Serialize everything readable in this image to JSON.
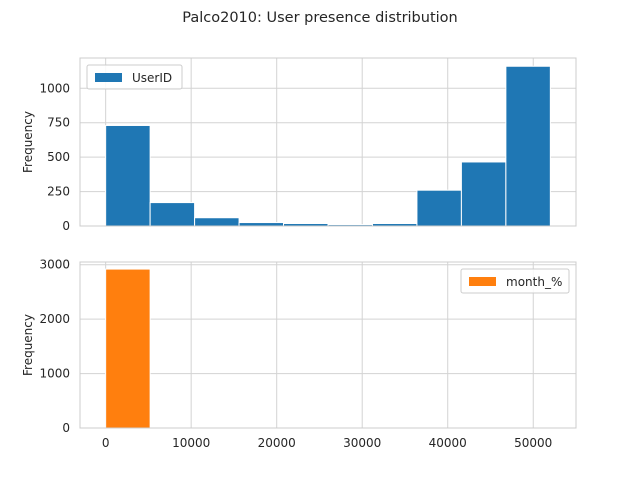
{
  "figure": {
    "title": "Palco2010: User presence distribution"
  },
  "chart_data": [
    {
      "type": "bar",
      "subtype": "histogram",
      "legend_label": "UserID",
      "legend_position": "upper left",
      "ylabel": "Frequency",
      "xlabel": "",
      "color": "#1f77b4",
      "xlim": [
        -3000,
        55000
      ],
      "ylim": [
        0,
        1220
      ],
      "yticks": [
        0,
        250,
        500,
        750,
        1000
      ],
      "xticks_visible": false,
      "grid": true,
      "bins": [
        {
          "x0": 0,
          "x1": 5200,
          "count": 730
        },
        {
          "x0": 5200,
          "x1": 10400,
          "count": 170
        },
        {
          "x0": 10400,
          "x1": 15600,
          "count": 60
        },
        {
          "x0": 15600,
          "x1": 20800,
          "count": 25
        },
        {
          "x0": 20800,
          "x1": 26000,
          "count": 18
        },
        {
          "x0": 26000,
          "x1": 31200,
          "count": 10
        },
        {
          "x0": 31200,
          "x1": 36400,
          "count": 18
        },
        {
          "x0": 36400,
          "x1": 41600,
          "count": 260
        },
        {
          "x0": 41600,
          "x1": 46800,
          "count": 465
        },
        {
          "x0": 46800,
          "x1": 52000,
          "count": 1160
        }
      ]
    },
    {
      "type": "bar",
      "subtype": "histogram",
      "legend_label": "month_%",
      "legend_position": "upper right",
      "ylabel": "Frequency",
      "xlabel": "",
      "color": "#ff7f0e",
      "xlim": [
        -3000,
        55000
      ],
      "ylim": [
        0,
        3050
      ],
      "yticks": [
        0,
        1000,
        2000,
        3000
      ],
      "xticks": [
        0,
        10000,
        20000,
        30000,
        40000,
        50000
      ],
      "grid": true,
      "bins": [
        {
          "x0": 0,
          "x1": 5200,
          "count": 2920
        }
      ]
    }
  ]
}
